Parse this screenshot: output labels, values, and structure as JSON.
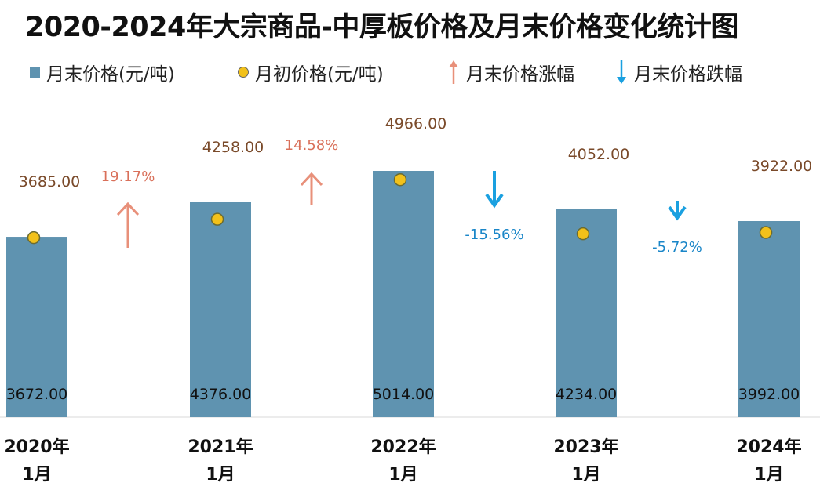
{
  "chart_data": {
    "type": "bar",
    "title": "2020-2024年大宗商品-中厚板价格及月末价格变化统计图",
    "categories": [
      "2020年\n1月",
      "2021年\n1月",
      "2022年\n1月",
      "2023年\n1月",
      "2024年\n1月"
    ],
    "series": [
      {
        "name": "月末价格(元/吨)",
        "values": [
          3672.0,
          4376.0,
          5014.0,
          4234.0,
          3992.0
        ],
        "labels": [
          "3672.00",
          "4376.00",
          "5014.00",
          "4234.00",
          "3992.00"
        ]
      },
      {
        "name": "月初价格(元/吨)",
        "values": [
          3685.0,
          4258.0,
          4966.0,
          4052.0,
          3922.0
        ],
        "labels": [
          "3685.00",
          "4258.00",
          "4966.00",
          "4052.00",
          "3922.00"
        ]
      }
    ],
    "changes": [
      {
        "name": "月末价格涨幅",
        "direction": "up",
        "value": 19.17,
        "label": "19.17%"
      },
      {
        "name": "月末价格涨幅",
        "direction": "up",
        "value": 14.58,
        "label": "14.58%"
      },
      {
        "name": "月末价格跌幅",
        "direction": "down",
        "value": -15.56,
        "label": "-15.56%"
      },
      {
        "name": "月末价格跌幅",
        "direction": "down",
        "value": -5.72,
        "label": "-5.72%"
      }
    ],
    "legend": [
      {
        "label": "月末价格(元/吨)",
        "marker": "square",
        "color": "#5f93b0"
      },
      {
        "label": "月初价格(元/吨)",
        "marker": "circle",
        "color": "#f2c11a"
      },
      {
        "label": "月末价格涨幅",
        "marker": "up-arrow",
        "color": "#e8907a"
      },
      {
        "label": "月末价格跌幅",
        "marker": "down-arrow",
        "color": "#1aa0e0"
      }
    ],
    "legend_position": "top",
    "colors": {
      "bar": "#5f93b0",
      "dot": "#f2c11a",
      "dot_border": "#6b6b30",
      "up": "#e8907a",
      "down": "#1aa0e0",
      "up_text": "#d9705a",
      "down_text": "#1a86c8",
      "value_label": "#7a4a2a"
    },
    "grid": false
  }
}
